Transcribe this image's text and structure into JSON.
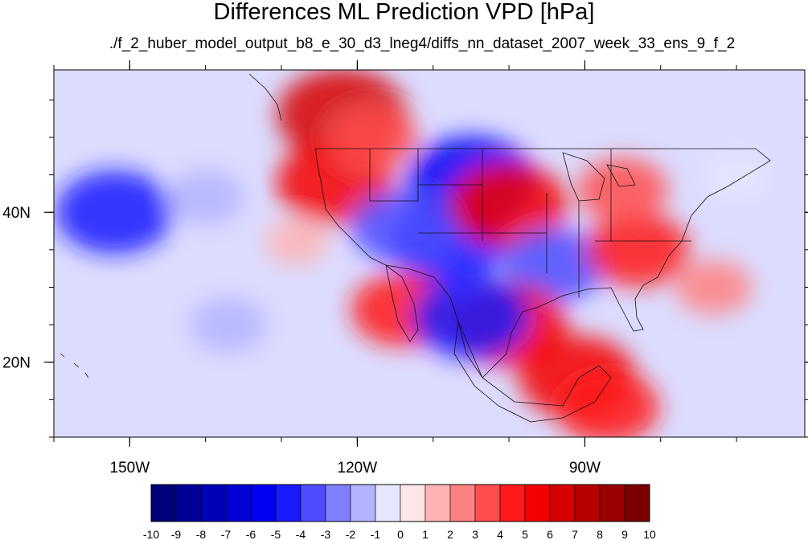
{
  "title": "Differences ML Prediction VPD [hPa]",
  "subtitle": "./f_2_huber_model_output_b8_e_30_d3_lneg4/diffs_nn_dataset_2007_week_33_ens_9_f_2",
  "map": {
    "lon_range": [
      -160,
      -61
    ],
    "lat_range": [
      10,
      59
    ],
    "lon_ticks": [
      {
        "value": -150,
        "label": "150W"
      },
      {
        "value": -120,
        "label": "120W"
      },
      {
        "value": -90,
        "label": "90W"
      }
    ],
    "lat_ticks": [
      {
        "value": 40,
        "label": "40N"
      },
      {
        "value": 20,
        "label": "20N"
      }
    ],
    "minor_lon_step": 10,
    "minor_lat_step": 5
  },
  "colorbar": {
    "colors": [
      "#00007a",
      "#000099",
      "#0000b8",
      "#0000d6",
      "#0000f5",
      "#1a1aff",
      "#4d4dff",
      "#8080ff",
      "#b3b3ff",
      "#e6e6ff",
      "#ffe6e6",
      "#ffb3b3",
      "#ff8080",
      "#ff4d4d",
      "#ff1a1a",
      "#f50000",
      "#d60000",
      "#b80000",
      "#990000",
      "#7a0000"
    ],
    "labels": [
      "-10",
      "-9",
      "-8",
      "-7",
      "-6",
      "-5",
      "-4",
      "-3",
      "-2",
      "-1",
      "0",
      "1",
      "2",
      "3",
      "4",
      "5",
      "6",
      "7",
      "8",
      "9",
      "10"
    ]
  },
  "fields": [
    {
      "lon": -122,
      "lat": 53,
      "value": 6
    },
    {
      "lon": -123,
      "lat": 44,
      "value": 5
    },
    {
      "lon": -118,
      "lat": 50,
      "value": 3
    },
    {
      "lon": -105,
      "lat": 44,
      "value": -6
    },
    {
      "lon": -108,
      "lat": 36,
      "value": -5
    },
    {
      "lon": -114,
      "lat": 38,
      "value": -4
    },
    {
      "lon": -100,
      "lat": 41,
      "value": 5
    },
    {
      "lon": -94,
      "lat": 33,
      "value": -4
    },
    {
      "lon": -83,
      "lat": 35,
      "value": 4
    },
    {
      "lon": -85,
      "lat": 43,
      "value": 3
    },
    {
      "lon": -100,
      "lat": 25,
      "value": 5
    },
    {
      "lon": -91,
      "lat": 18,
      "value": 5
    },
    {
      "lon": -87,
      "lat": 14,
      "value": 4
    },
    {
      "lon": -152,
      "lat": 40,
      "value": -5
    },
    {
      "lon": -140,
      "lat": 42,
      "value": -2
    },
    {
      "lon": -128,
      "lat": 36,
      "value": 1
    },
    {
      "lon": -137,
      "lat": 25,
      "value": -2
    },
    {
      "lon": -114,
      "lat": 27,
      "value": 4
    },
    {
      "lon": -105,
      "lat": 26,
      "value": -5
    },
    {
      "lon": -73,
      "lat": 30,
      "value": 2
    },
    {
      "lon": -70,
      "lat": 45,
      "value": -1
    }
  ]
}
